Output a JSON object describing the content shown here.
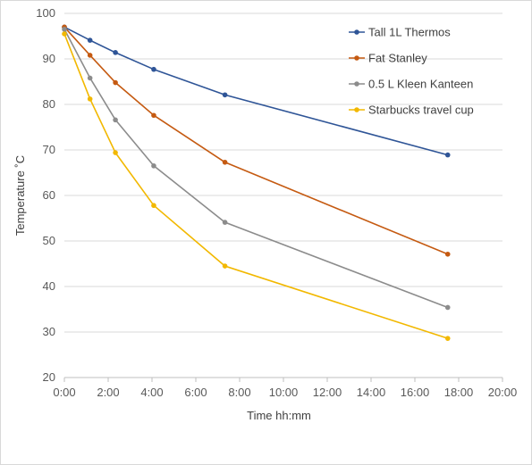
{
  "chart_data": {
    "type": "line",
    "title": "",
    "xlabel": "Time hh:mm",
    "ylabel": "Temperature ˚C",
    "xlim": [
      0,
      20
    ],
    "ylim": [
      20,
      100
    ],
    "x_ticks": [
      "0:00",
      "2:00",
      "4:00",
      "6:00",
      "8:00",
      "10:00",
      "12:00",
      "14:00",
      "16:00",
      "18:00",
      "20:00"
    ],
    "y_ticks": [
      "20",
      "30",
      "40",
      "50",
      "60",
      "70",
      "80",
      "90",
      "100"
    ],
    "x_unit": "hours",
    "grid": "horizontal",
    "legend_position": "top-right",
    "series": [
      {
        "name": "Tall 1L Thermos",
        "color": "#2f5597",
        "x": [
          0,
          1.17,
          2.33,
          4.08,
          7.33,
          17.5
        ],
        "y": [
          97,
          94.1,
          91.4,
          87.7,
          82.1,
          68.9
        ]
      },
      {
        "name": "Fat Stanley",
        "color": "#c55a11",
        "x": [
          0,
          1.17,
          2.33,
          4.08,
          7.33,
          17.5
        ],
        "y": [
          97,
          90.8,
          84.8,
          77.6,
          67.3,
          47.1
        ]
      },
      {
        "name": "0.5 L Kleen Kanteen",
        "color": "#8c8c8c",
        "x": [
          0,
          1.17,
          2.33,
          4.08,
          7.33,
          17.5
        ],
        "y": [
          96.5,
          85.8,
          76.6,
          66.5,
          54.1,
          35.4
        ]
      },
      {
        "name": "Starbucks travel cup",
        "color": "#f2b800",
        "x": [
          0,
          1.17,
          2.33,
          4.08,
          7.33,
          17.5
        ],
        "y": [
          95.5,
          81.2,
          69.4,
          57.8,
          44.5,
          28.6
        ]
      }
    ]
  }
}
